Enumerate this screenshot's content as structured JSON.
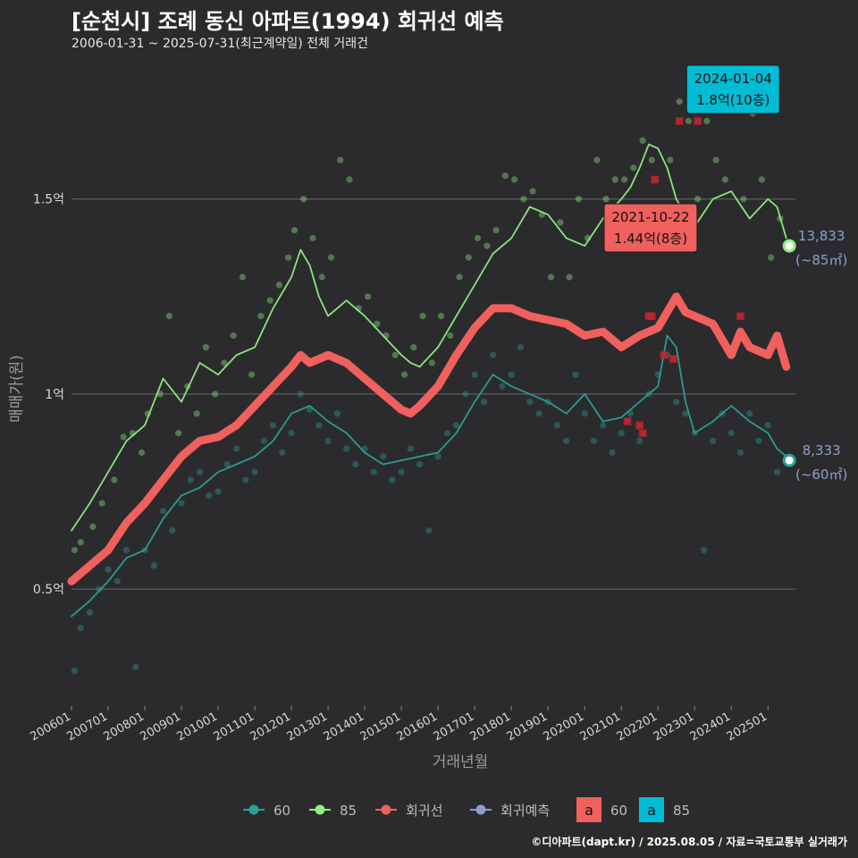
{
  "title": "[순천시] 조례 동신 아파트(1994) 회귀선 예측",
  "subtitle": "2006-01-31 ~ 2025-07-31(최근계약일) 전체 거래건",
  "footer": "©디아파트(dapt.kr) / 2025.08.05 / 자료=국토교통부 실거래가",
  "colors": {
    "background": "#2b2b2d",
    "s60": "#2aa198",
    "s85": "#90ee82",
    "regression": "#f0605d",
    "forecast": "#8da0cb",
    "cancel": "#c0262d",
    "label85_fill": "#00bcd4"
  },
  "chart_data": {
    "type": "line",
    "xlabel": "거래년월",
    "ylabel": "매매가(원)",
    "ylim": [
      0.2,
      1.85
    ],
    "xlim": [
      "2006-01",
      "2025-10"
    ],
    "y_ticks": [
      {
        "value": 0.5,
        "label": "0.5억"
      },
      {
        "value": 1.0,
        "label": "1억"
      },
      {
        "value": 1.5,
        "label": "1.5억"
      }
    ],
    "x_ticks": [
      "200601",
      "200701",
      "200801",
      "200901",
      "201001",
      "201101",
      "201201",
      "201301",
      "201401",
      "201501",
      "201601",
      "201701",
      "201801",
      "201901",
      "202001",
      "202101",
      "202201",
      "202301",
      "202401",
      "202501"
    ],
    "grid": "horizontal",
    "legend_position": "bottom",
    "legend": [
      {
        "key": "s60",
        "label": "60",
        "type": "line-point"
      },
      {
        "key": "s85",
        "label": "85",
        "type": "line-point"
      },
      {
        "key": "regression",
        "label": "회귀선",
        "type": "line-point"
      },
      {
        "key": "forecast",
        "label": "회귀예측",
        "type": "line-point"
      }
    ],
    "legend_boxes": [
      {
        "key": "regression",
        "glyph": "a",
        "label": "60"
      },
      {
        "key": "label85_fill",
        "glyph": "a",
        "label": "85"
      }
    ],
    "series": [
      {
        "name": "85",
        "key": "s85",
        "x": [
          "2006-01",
          "2006-07",
          "2007-01",
          "2007-07",
          "2008-01",
          "2008-04",
          "2008-07",
          "2009-01",
          "2009-07",
          "2010-01",
          "2010-07",
          "2011-01",
          "2011-07",
          "2012-01",
          "2012-04",
          "2012-07",
          "2012-10",
          "2013-01",
          "2013-07",
          "2014-01",
          "2014-07",
          "2015-01",
          "2015-04",
          "2015-07",
          "2016-01",
          "2016-07",
          "2017-01",
          "2017-07",
          "2018-01",
          "2018-07",
          "2019-01",
          "2019-07",
          "2020-01",
          "2020-07",
          "2021-01",
          "2021-04",
          "2021-07",
          "2021-10",
          "2022-01",
          "2022-04",
          "2022-07",
          "2022-10",
          "2023-01",
          "2023-07",
          "2024-01",
          "2024-07",
          "2025-01",
          "2025-04",
          "2025-07"
        ],
        "y": [
          0.65,
          0.72,
          0.8,
          0.88,
          0.92,
          0.98,
          1.04,
          0.98,
          1.08,
          1.05,
          1.1,
          1.12,
          1.22,
          1.3,
          1.37,
          1.33,
          1.25,
          1.2,
          1.24,
          1.2,
          1.15,
          1.1,
          1.08,
          1.07,
          1.12,
          1.2,
          1.28,
          1.36,
          1.4,
          1.48,
          1.46,
          1.4,
          1.38,
          1.45,
          1.5,
          1.53,
          1.58,
          1.64,
          1.63,
          1.58,
          1.5,
          1.46,
          1.43,
          1.5,
          1.52,
          1.45,
          1.5,
          1.48,
          1.4
        ]
      },
      {
        "name": "60",
        "key": "s60",
        "x": [
          "2006-01",
          "2006-07",
          "2007-01",
          "2007-07",
          "2008-01",
          "2008-07",
          "2009-01",
          "2009-07",
          "2010-01",
          "2010-07",
          "2011-01",
          "2011-07",
          "2012-01",
          "2012-07",
          "2013-01",
          "2013-07",
          "2014-01",
          "2014-07",
          "2015-01",
          "2015-07",
          "2016-01",
          "2016-07",
          "2017-01",
          "2017-07",
          "2018-01",
          "2018-07",
          "2019-01",
          "2019-07",
          "2020-01",
          "2020-07",
          "2021-01",
          "2021-07",
          "2022-01",
          "2022-04",
          "2022-07",
          "2022-10",
          "2023-01",
          "2023-07",
          "2024-01",
          "2024-07",
          "2025-01",
          "2025-04",
          "2025-07"
        ],
        "y": [
          0.43,
          0.47,
          0.52,
          0.58,
          0.6,
          0.68,
          0.74,
          0.76,
          0.8,
          0.82,
          0.84,
          0.88,
          0.95,
          0.97,
          0.93,
          0.9,
          0.85,
          0.82,
          0.83,
          0.84,
          0.85,
          0.9,
          0.98,
          1.05,
          1.02,
          1.0,
          0.98,
          0.95,
          1.0,
          0.93,
          0.94,
          0.98,
          1.02,
          1.15,
          1.12,
          0.98,
          0.9,
          0.93,
          0.97,
          0.93,
          0.9,
          0.86,
          0.84
        ]
      },
      {
        "name": "회귀선",
        "key": "regression",
        "x": [
          "2006-01",
          "2006-07",
          "2007-01",
          "2007-07",
          "2008-01",
          "2008-07",
          "2009-01",
          "2009-07",
          "2010-01",
          "2010-07",
          "2011-01",
          "2011-07",
          "2012-01",
          "2012-04",
          "2012-07",
          "2013-01",
          "2013-07",
          "2014-01",
          "2014-07",
          "2015-01",
          "2015-04",
          "2015-07",
          "2016-01",
          "2016-07",
          "2017-01",
          "2017-07",
          "2018-01",
          "2018-07",
          "2019-01",
          "2019-07",
          "2020-01",
          "2020-07",
          "2021-01",
          "2021-07",
          "2022-01",
          "2022-07",
          "2022-10",
          "2023-01",
          "2023-07",
          "2024-01",
          "2024-04",
          "2024-07",
          "2025-01",
          "2025-04",
          "2025-07"
        ],
        "y": [
          0.52,
          0.56,
          0.6,
          0.67,
          0.72,
          0.78,
          0.84,
          0.88,
          0.89,
          0.92,
          0.97,
          1.02,
          1.07,
          1.1,
          1.08,
          1.1,
          1.08,
          1.04,
          1.0,
          0.96,
          0.95,
          0.97,
          1.02,
          1.1,
          1.17,
          1.22,
          1.22,
          1.2,
          1.19,
          1.18,
          1.15,
          1.16,
          1.12,
          1.15,
          1.17,
          1.25,
          1.21,
          1.2,
          1.18,
          1.1,
          1.16,
          1.12,
          1.1,
          1.15,
          1.07
        ]
      }
    ],
    "scatter_85": [
      [
        "2006-02",
        0.6
      ],
      [
        "2006-04",
        0.62
      ],
      [
        "2006-08",
        0.66
      ],
      [
        "2006-11",
        0.72
      ],
      [
        "2007-03",
        0.78
      ],
      [
        "2007-06",
        0.89
      ],
      [
        "2007-09",
        0.9
      ],
      [
        "2007-12",
        0.85
      ],
      [
        "2008-02",
        0.95
      ],
      [
        "2008-06",
        1.0
      ],
      [
        "2008-09",
        1.2
      ],
      [
        "2008-12",
        0.9
      ],
      [
        "2009-03",
        1.02
      ],
      [
        "2009-06",
        0.95
      ],
      [
        "2009-09",
        1.12
      ],
      [
        "2009-12",
        1.0
      ],
      [
        "2010-03",
        1.08
      ],
      [
        "2010-06",
        1.15
      ],
      [
        "2010-09",
        1.3
      ],
      [
        "2010-12",
        1.05
      ],
      [
        "2011-03",
        1.2
      ],
      [
        "2011-06",
        1.24
      ],
      [
        "2011-09",
        1.28
      ],
      [
        "2011-12",
        1.35
      ],
      [
        "2012-02",
        1.42
      ],
      [
        "2012-05",
        1.5
      ],
      [
        "2012-08",
        1.4
      ],
      [
        "2012-11",
        1.3
      ],
      [
        "2013-02",
        1.35
      ],
      [
        "2013-05",
        1.6
      ],
      [
        "2013-08",
        1.55
      ],
      [
        "2013-11",
        1.22
      ],
      [
        "2014-02",
        1.25
      ],
      [
        "2014-05",
        1.18
      ],
      [
        "2014-08",
        1.15
      ],
      [
        "2014-11",
        1.1
      ],
      [
        "2015-02",
        1.05
      ],
      [
        "2015-05",
        1.12
      ],
      [
        "2015-08",
        1.2
      ],
      [
        "2015-11",
        1.08
      ],
      [
        "2016-02",
        1.2
      ],
      [
        "2016-05",
        1.15
      ],
      [
        "2016-08",
        1.3
      ],
      [
        "2016-11",
        1.35
      ],
      [
        "2017-02",
        1.4
      ],
      [
        "2017-05",
        1.38
      ],
      [
        "2017-08",
        1.42
      ],
      [
        "2017-11",
        1.56
      ],
      [
        "2018-02",
        1.55
      ],
      [
        "2018-05",
        1.5
      ],
      [
        "2018-08",
        1.52
      ],
      [
        "2018-11",
        1.46
      ],
      [
        "2019-02",
        1.3
      ],
      [
        "2019-05",
        1.44
      ],
      [
        "2019-08",
        1.3
      ],
      [
        "2019-11",
        1.5
      ],
      [
        "2020-02",
        1.4
      ],
      [
        "2020-05",
        1.6
      ],
      [
        "2020-08",
        1.5
      ],
      [
        "2020-11",
        1.55
      ],
      [
        "2021-02",
        1.55
      ],
      [
        "2021-05",
        1.58
      ],
      [
        "2021-08",
        1.65
      ],
      [
        "2021-11",
        1.6
      ],
      [
        "2022-02",
        1.45
      ],
      [
        "2022-05",
        1.6
      ],
      [
        "2022-08",
        1.75
      ],
      [
        "2022-11",
        1.7
      ],
      [
        "2023-02",
        1.5
      ],
      [
        "2023-05",
        1.7
      ],
      [
        "2023-08",
        1.6
      ],
      [
        "2023-11",
        1.55
      ],
      [
        "2024-02",
        1.8
      ],
      [
        "2024-05",
        1.5
      ],
      [
        "2024-08",
        1.72
      ],
      [
        "2024-11",
        1.55
      ],
      [
        "2025-02",
        1.35
      ],
      [
        "2025-05",
        1.45
      ]
    ],
    "scatter_60": [
      [
        "2006-02",
        0.29
      ],
      [
        "2006-04",
        0.4
      ],
      [
        "2006-07",
        0.44
      ],
      [
        "2006-10",
        0.5
      ],
      [
        "2007-01",
        0.55
      ],
      [
        "2007-04",
        0.52
      ],
      [
        "2007-07",
        0.6
      ],
      [
        "2007-10",
        0.3
      ],
      [
        "2008-01",
        0.6
      ],
      [
        "2008-04",
        0.56
      ],
      [
        "2008-07",
        0.7
      ],
      [
        "2008-10",
        0.65
      ],
      [
        "2009-01",
        0.72
      ],
      [
        "2009-04",
        0.78
      ],
      [
        "2009-07",
        0.8
      ],
      [
        "2009-10",
        0.74
      ],
      [
        "2010-01",
        0.75
      ],
      [
        "2010-04",
        0.82
      ],
      [
        "2010-07",
        0.86
      ],
      [
        "2010-10",
        0.78
      ],
      [
        "2011-01",
        0.8
      ],
      [
        "2011-04",
        0.88
      ],
      [
        "2011-07",
        0.92
      ],
      [
        "2011-10",
        0.85
      ],
      [
        "2012-01",
        0.9
      ],
      [
        "2012-04",
        1.0
      ],
      [
        "2012-07",
        0.96
      ],
      [
        "2012-10",
        0.92
      ],
      [
        "2013-01",
        0.88
      ],
      [
        "2013-04",
        0.95
      ],
      [
        "2013-07",
        0.86
      ],
      [
        "2013-10",
        0.82
      ],
      [
        "2014-01",
        0.86
      ],
      [
        "2014-04",
        0.8
      ],
      [
        "2014-07",
        0.84
      ],
      [
        "2014-10",
        0.78
      ],
      [
        "2015-01",
        0.8
      ],
      [
        "2015-04",
        0.86
      ],
      [
        "2015-07",
        0.82
      ],
      [
        "2015-10",
        0.65
      ],
      [
        "2016-01",
        0.84
      ],
      [
        "2016-04",
        0.9
      ],
      [
        "2016-07",
        0.92
      ],
      [
        "2016-10",
        1.0
      ],
      [
        "2017-01",
        1.05
      ],
      [
        "2017-04",
        0.98
      ],
      [
        "2017-07",
        1.1
      ],
      [
        "2017-10",
        1.02
      ],
      [
        "2018-01",
        1.05
      ],
      [
        "2018-04",
        1.12
      ],
      [
        "2018-07",
        0.98
      ],
      [
        "2018-10",
        0.95
      ],
      [
        "2019-01",
        0.98
      ],
      [
        "2019-04",
        0.92
      ],
      [
        "2019-07",
        0.88
      ],
      [
        "2019-10",
        1.05
      ],
      [
        "2020-01",
        0.95
      ],
      [
        "2020-04",
        0.88
      ],
      [
        "2020-07",
        0.92
      ],
      [
        "2020-10",
        0.85
      ],
      [
        "2021-01",
        0.9
      ],
      [
        "2021-04",
        0.95
      ],
      [
        "2021-07",
        0.88
      ],
      [
        "2021-10",
        1.0
      ],
      [
        "2022-01",
        1.05
      ],
      [
        "2022-04",
        1.1
      ],
      [
        "2022-07",
        0.98
      ],
      [
        "2022-10",
        0.95
      ],
      [
        "2023-01",
        0.9
      ],
      [
        "2023-04",
        0.6
      ],
      [
        "2023-07",
        0.88
      ],
      [
        "2023-10",
        0.95
      ],
      [
        "2024-01",
        0.9
      ],
      [
        "2024-04",
        0.85
      ],
      [
        "2024-07",
        0.95
      ],
      [
        "2024-10",
        0.88
      ],
      [
        "2025-01",
        0.92
      ],
      [
        "2025-04",
        0.8
      ]
    ],
    "cancelled": [
      [
        "2021-03",
        0.93
      ],
      [
        "2021-07",
        0.92
      ],
      [
        "2021-08",
        0.9
      ],
      [
        "2021-10",
        1.2
      ],
      [
        "2021-11",
        1.2
      ],
      [
        "2021-12",
        1.55
      ],
      [
        "2022-03",
        1.1
      ],
      [
        "2022-06",
        1.09
      ],
      [
        "2022-08",
        1.7
      ],
      [
        "2023-02",
        1.7
      ],
      [
        "2024-04",
        1.2
      ]
    ],
    "endpoints": [
      {
        "key": "s85",
        "x": "2025-08",
        "y": 1.38,
        "value": "13,833",
        "sub": "(~85㎡)"
      },
      {
        "key": "s60",
        "x": "2025-08",
        "y": 0.83,
        "value": "8,333",
        "sub": "(~60㎡)"
      }
    ],
    "annotations": [
      {
        "series": "85",
        "x": "2024-01",
        "y": 1.8,
        "date": "2024-01-04",
        "text": "1.8억(10층)",
        "fill_key": "label85_fill"
      },
      {
        "series": "60",
        "x": "2021-10",
        "y": 1.44,
        "date": "2021-10-22",
        "text": "1.44억(8층)",
        "fill_key": "regression"
      }
    ]
  }
}
